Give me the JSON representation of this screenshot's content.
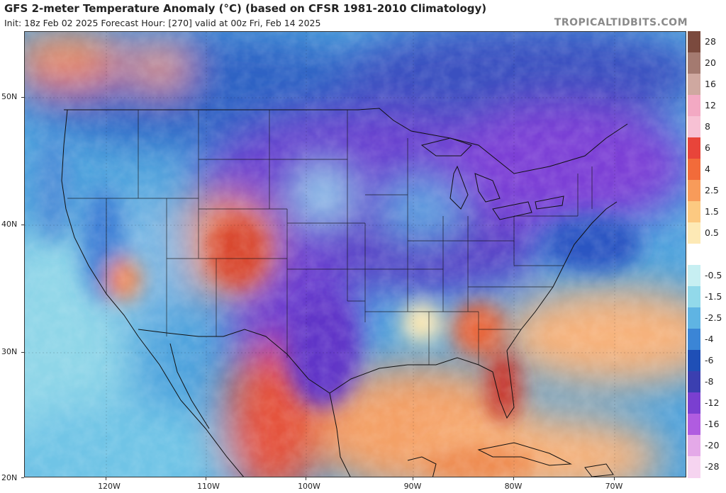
{
  "title": "GFS 2-meter Temperature Anomaly (°C) (based on CFSR 1981-2010 Climatology)",
  "subtitle": "Init: 18z Feb 02 2025   Forecast Hour: [270]   valid at 00z Fri, Feb 14 2025",
  "source": "TROPICALTIDBITS.COM",
  "latitudes": [
    {
      "label": "50N",
      "value": 50
    },
    {
      "label": "40N",
      "value": 40
    },
    {
      "label": "30N",
      "value": 30
    },
    {
      "label": "20N",
      "value": 20
    }
  ],
  "longitudes": [
    {
      "label": "120W",
      "value": -120
    },
    {
      "label": "110W",
      "value": -110
    },
    {
      "label": "100W",
      "value": -100
    },
    {
      "label": "90W",
      "value": -90
    },
    {
      "label": "80W",
      "value": -80
    },
    {
      "label": "70W",
      "value": -70
    }
  ],
  "colorbar": [
    {
      "label": "28",
      "color": "#7b4a3e"
    },
    {
      "label": "20",
      "color": "#a47a70"
    },
    {
      "label": "16",
      "color": "#cfa8a0"
    },
    {
      "label": "12",
      "color": "#f3a9c3"
    },
    {
      "label": "8",
      "color": "#f7c1d4"
    },
    {
      "label": "6",
      "color": "#e8443a"
    },
    {
      "label": "4",
      "color": "#f26b3a"
    },
    {
      "label": "2.5",
      "color": "#f89b5a"
    },
    {
      "label": "1.5",
      "color": "#fcc981"
    },
    {
      "label": "0.5",
      "color": "#fde9b5"
    },
    {
      "label": "",
      "color": "#ffffff"
    },
    {
      "label": "-0.5",
      "color": "#c7eff2"
    },
    {
      "label": "-1.5",
      "color": "#92d9ea"
    },
    {
      "label": "-2.5",
      "color": "#5fb4e3"
    },
    {
      "label": "-4",
      "color": "#3b85d6"
    },
    {
      "label": "-6",
      "color": "#1f4fb6"
    },
    {
      "label": "-8",
      "color": "#3b3fb0"
    },
    {
      "label": "-12",
      "color": "#7a3fd0"
    },
    {
      "label": "-16",
      "color": "#b05ce0"
    },
    {
      "label": "-20",
      "color": "#e4a9e8"
    },
    {
      "label": "-28",
      "color": "#f6d4f0"
    }
  ]
}
